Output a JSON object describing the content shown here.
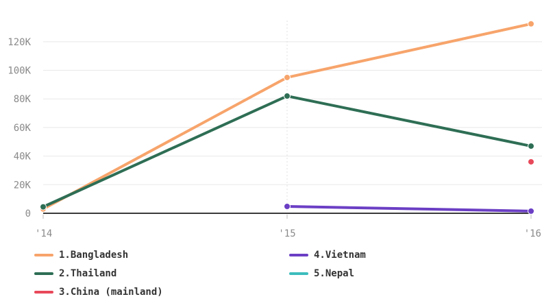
{
  "chart_data": {
    "type": "line",
    "x": [
      "'14",
      "'15",
      "'16"
    ],
    "ylim": [
      0,
      130000
    ],
    "y_ticks": [
      {
        "value": 0,
        "label": "0"
      },
      {
        "value": 20000,
        "label": "20K"
      },
      {
        "value": 40000,
        "label": "40K"
      },
      {
        "value": 60000,
        "label": "60K"
      },
      {
        "value": 80000,
        "label": "80K"
      },
      {
        "value": 100000,
        "label": "100K"
      },
      {
        "value": 120000,
        "label": "120K"
      }
    ],
    "grid": true,
    "legend_position": "bottom",
    "series": [
      {
        "name": "1.Bangladesh",
        "color": "#f7a46b",
        "values": [
          3000,
          95000,
          132500
        ]
      },
      {
        "name": "2.Thailand",
        "color": "#2e6e55",
        "values": [
          4500,
          82000,
          47000
        ]
      },
      {
        "name": "3.China (mainland)",
        "color": "#e8495a",
        "values": [
          null,
          null,
          36000
        ]
      },
      {
        "name": "4.Vietnam",
        "color": "#6b3fc4",
        "values": [
          null,
          4800,
          1500
        ]
      },
      {
        "name": "5.Nepal",
        "color": "#3dbdbd",
        "values": [
          null,
          null,
          null
        ]
      }
    ]
  }
}
